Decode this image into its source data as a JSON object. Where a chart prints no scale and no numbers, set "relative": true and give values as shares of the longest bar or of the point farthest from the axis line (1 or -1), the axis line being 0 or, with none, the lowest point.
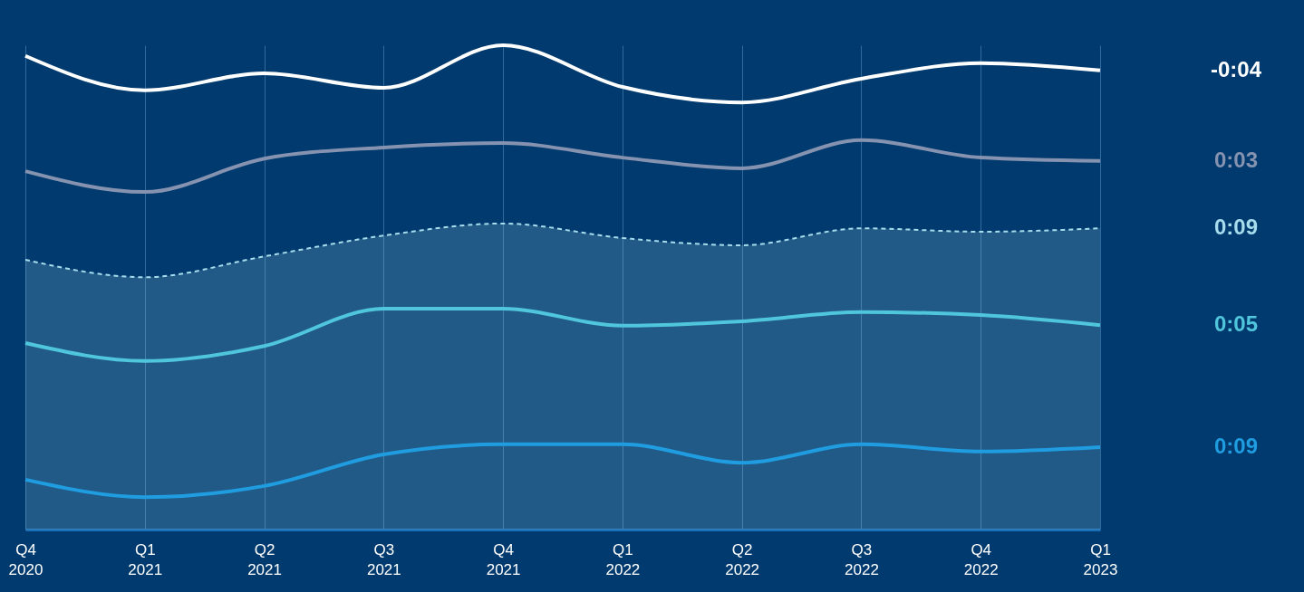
{
  "chart_data": {
    "type": "line",
    "relative": true,
    "grid": "x",
    "legend": false,
    "line_style": "solid",
    "categories": [
      "Q4 2020",
      "Q1 2021",
      "Q2 2021",
      "Q3 2021",
      "Q4 2021",
      "Q1 2022",
      "Q2 2022",
      "Q3 2022",
      "Q4 2022",
      "Q1 2023"
    ],
    "series": [
      {
        "name": "-0:04",
        "color": "#ffffff",
        "values": [
          0.978,
          0.907,
          0.942,
          0.912,
          1.0,
          0.914,
          0.882,
          0.931,
          0.963,
          0.948
        ]
      },
      {
        "name": "0:03",
        "color": "#8593b0",
        "values": [
          0.74,
          0.697,
          0.766,
          0.789,
          0.798,
          0.768,
          0.746,
          0.804,
          0.768,
          0.761
        ]
      },
      {
        "name": "0:09",
        "color": "#a6dcec",
        "type": "area",
        "line_style": "dashed",
        "values": [
          0.557,
          0.521,
          0.564,
          0.607,
          0.632,
          0.602,
          0.587,
          0.622,
          0.615,
          0.622
        ]
      },
      {
        "name": "0:05",
        "color": "#4fc6dc",
        "values": [
          0.385,
          0.348,
          0.379,
          0.456,
          0.456,
          0.421,
          0.43,
          0.449,
          0.443,
          0.422
        ]
      },
      {
        "name": "0:09",
        "color": "#1f9de0",
        "values": [
          0.103,
          0.067,
          0.09,
          0.155,
          0.176,
          0.176,
          0.138,
          0.176,
          0.161,
          0.17
        ]
      }
    ]
  }
}
